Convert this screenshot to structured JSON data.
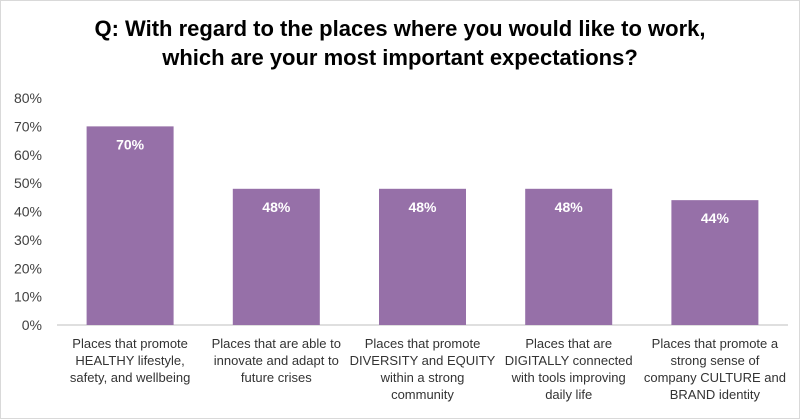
{
  "chart_data": {
    "type": "bar",
    "title_lines": [
      "Q: With regard to the places where you would like to work,",
      "which are your most important expectations?"
    ],
    "categories": [
      "Places that promote HEALTHY lifestyle, safety, and wellbeing",
      "Places that are able to innovate and adapt to future crises",
      "Places that promote DIVERSITY and EQUITY within a strong community",
      "Places that are DIGITALLY connected with tools improving daily life",
      "Places that promote a strong sense of company CULTURE and BRAND identity"
    ],
    "category_lines": [
      [
        "Places that promote",
        "HEALTHY lifestyle,",
        "safety, and wellbeing"
      ],
      [
        "Places that are able to",
        "innovate and adapt to",
        "future crises"
      ],
      [
        "Places that promote",
        "DIVERSITY and EQUITY",
        "within a strong",
        "community"
      ],
      [
        "Places that are",
        "DIGITALLY connected",
        "with tools improving",
        "daily life"
      ],
      [
        "Places that promote a",
        "strong sense of",
        "company CULTURE and",
        "BRAND identity"
      ]
    ],
    "values": [
      70,
      48,
      48,
      48,
      44
    ],
    "data_labels": [
      "70%",
      "48%",
      "48%",
      "48%",
      "44%"
    ],
    "yticks": [
      "0%",
      "10%",
      "20%",
      "30%",
      "40%",
      "50%",
      "60%",
      "70%",
      "80%"
    ],
    "ylim": [
      0,
      80
    ],
    "grid": false,
    "bar_color": "#9670a8",
    "axis_color": "#bfbfbf"
  }
}
